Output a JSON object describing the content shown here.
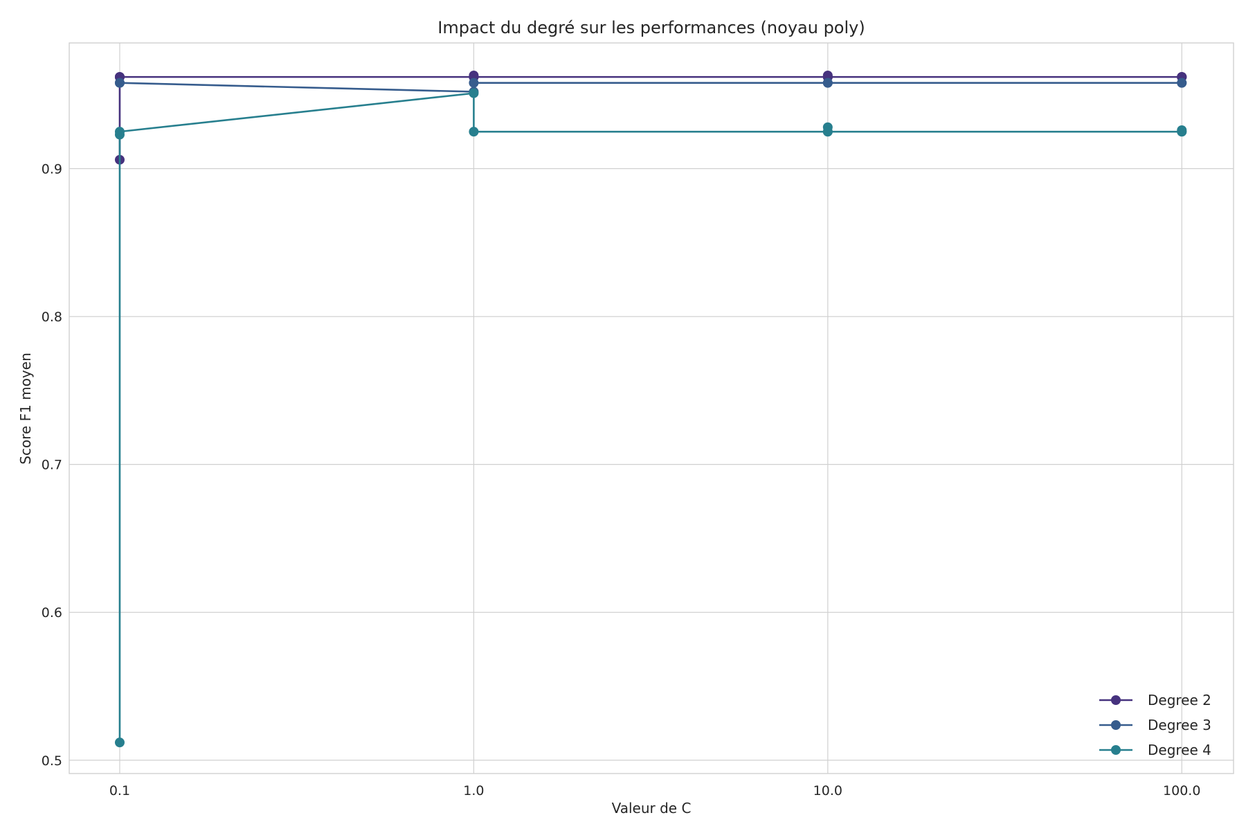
{
  "chart_data": {
    "type": "line",
    "title": "Impact du degré sur les performances (noyau poly)",
    "xlabel": "Valeur de C",
    "ylabel": "Score F1 moyen",
    "x_scale": "log",
    "x_ticks": [
      0.1,
      1.0,
      10.0,
      100.0
    ],
    "x_tick_labels": [
      "0.1",
      "1.0",
      "10.0",
      "100.0"
    ],
    "xlim": [
      0.072,
      140
    ],
    "y_ticks": [
      0.5,
      0.6,
      0.7,
      0.8,
      0.9
    ],
    "y_tick_labels": [
      "0.5",
      "0.6",
      "0.7",
      "0.8",
      "0.9"
    ],
    "ylim": [
      0.491,
      0.985
    ],
    "grid": true,
    "legend_position": "bottom-right",
    "series": [
      {
        "name": "Degree 2",
        "color": "#46327e",
        "points": [
          {
            "x": 0.1,
            "y": 0.962
          },
          {
            "x": 0.1,
            "y": 0.906
          },
          {
            "x": 0.1,
            "y": 0.962
          },
          {
            "x": 0.1,
            "y": 0.962
          },
          {
            "x": 1.0,
            "y": 0.962
          },
          {
            "x": 1.0,
            "y": 0.963
          },
          {
            "x": 1.0,
            "y": 0.962
          },
          {
            "x": 1.0,
            "y": 0.962
          },
          {
            "x": 10.0,
            "y": 0.962
          },
          {
            "x": 10.0,
            "y": 0.963
          },
          {
            "x": 10.0,
            "y": 0.962
          },
          {
            "x": 10.0,
            "y": 0.962
          },
          {
            "x": 100.0,
            "y": 0.962
          },
          {
            "x": 100.0,
            "y": 0.962
          },
          {
            "x": 100.0,
            "y": 0.962
          },
          {
            "x": 100.0,
            "y": 0.962
          }
        ]
      },
      {
        "name": "Degree 3",
        "color": "#365c8d",
        "points": [
          {
            "x": 0.1,
            "y": 0.958
          },
          {
            "x": 0.1,
            "y": 0.958
          },
          {
            "x": 1.0,
            "y": 0.952
          },
          {
            "x": 1.0,
            "y": 0.958
          },
          {
            "x": 10.0,
            "y": 0.958
          },
          {
            "x": 10.0,
            "y": 0.958
          },
          {
            "x": 100.0,
            "y": 0.958
          },
          {
            "x": 100.0,
            "y": 0.958
          }
        ]
      },
      {
        "name": "Degree 4",
        "color": "#277f8e",
        "points": [
          {
            "x": 0.1,
            "y": 0.923
          },
          {
            "x": 0.1,
            "y": 0.512
          },
          {
            "x": 0.1,
            "y": 0.925
          },
          {
            "x": 1.0,
            "y": 0.951
          },
          {
            "x": 1.0,
            "y": 0.925
          },
          {
            "x": 10.0,
            "y": 0.925
          },
          {
            "x": 10.0,
            "y": 0.928
          },
          {
            "x": 10.0,
            "y": 0.925
          },
          {
            "x": 100.0,
            "y": 0.925
          },
          {
            "x": 100.0,
            "y": 0.926
          },
          {
            "x": 100.0,
            "y": 0.925
          }
        ]
      }
    ]
  }
}
